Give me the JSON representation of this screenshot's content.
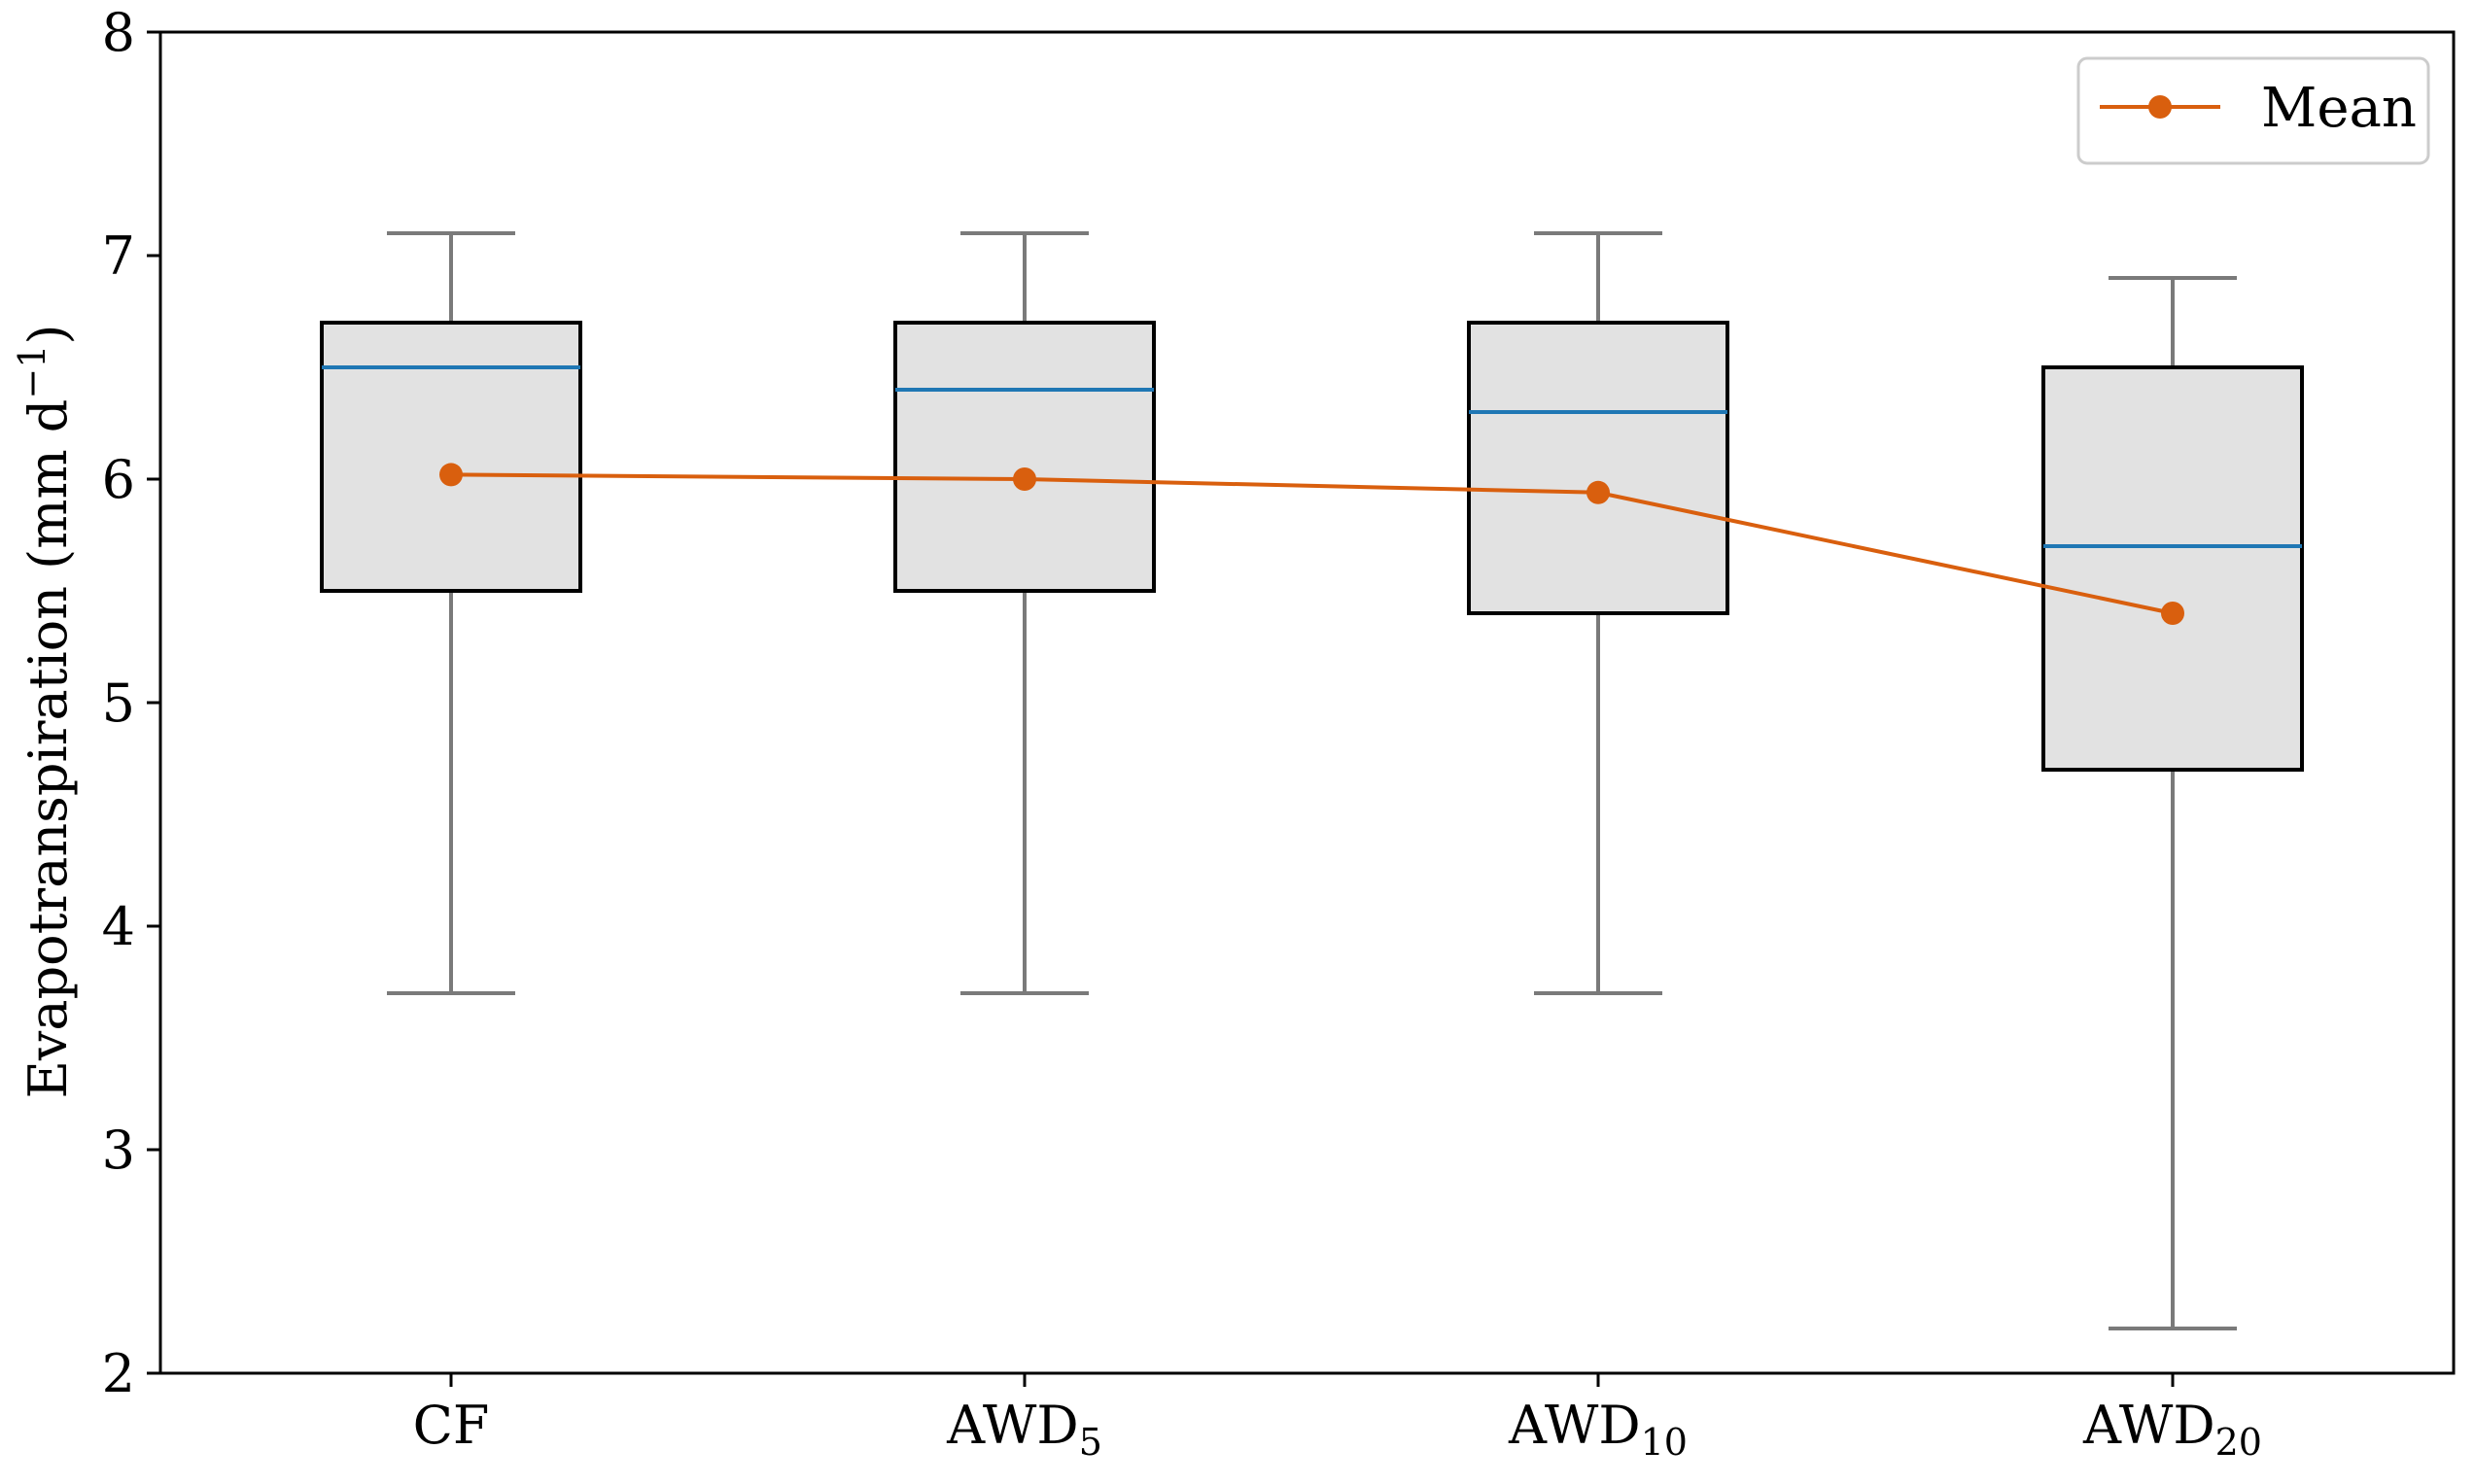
{
  "chart_data": {
    "type": "box",
    "title": "",
    "xlabel": "",
    "ylabel": {
      "main": "Evapotranspiration (mm d",
      "sup": "−1",
      "close": ")"
    },
    "ylim": [
      2,
      8
    ],
    "yticks": [
      "2",
      "3",
      "4",
      "5",
      "6",
      "7",
      "8"
    ],
    "grid": false,
    "legend": {
      "placement": "top-right",
      "label": "Mean"
    },
    "categories": [
      {
        "base": "CF",
        "sub": ""
      },
      {
        "base": "AWD",
        "sub": "5"
      },
      {
        "base": "AWD",
        "sub": "10"
      },
      {
        "base": "AWD",
        "sub": "20"
      }
    ],
    "boxes": [
      {
        "whisker_low": 3.7,
        "q1": 5.5,
        "median": 6.5,
        "q3": 6.7,
        "whisker_high": 7.1,
        "mean": 6.02
      },
      {
        "whisker_low": 3.7,
        "q1": 5.5,
        "median": 6.4,
        "q3": 6.7,
        "whisker_high": 7.1,
        "mean": 6.0
      },
      {
        "whisker_low": 3.7,
        "q1": 5.4,
        "median": 6.3,
        "q3": 6.7,
        "whisker_high": 7.1,
        "mean": 5.94
      },
      {
        "whisker_low": 2.2,
        "q1": 4.7,
        "median": 5.7,
        "q3": 6.5,
        "whisker_high": 6.9,
        "mean": 5.4
      }
    ],
    "colors": {
      "box_fill": "#e2e2e2",
      "box_edge": "#000000",
      "whisker": "#7a7a7a",
      "median": "#1f77b4",
      "mean": "#d95f0e",
      "axis": "#000000",
      "legend_edge": "#cccccc"
    }
  }
}
